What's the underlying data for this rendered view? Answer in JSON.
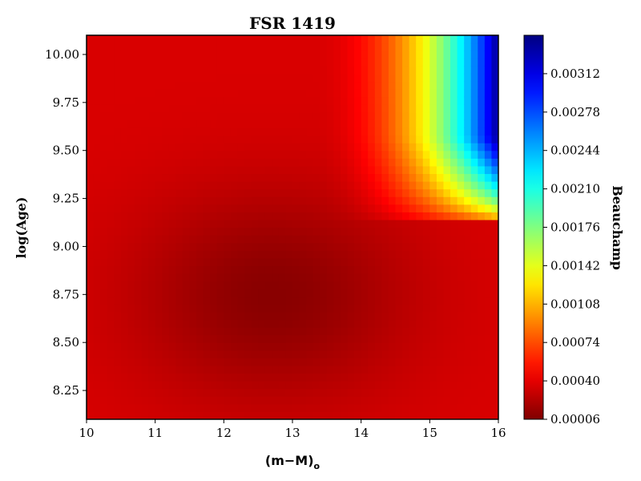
{
  "chart_data": {
    "type": "heatmap",
    "title": "FSR 1419",
    "xlabel": "(m−M)",
    "xlabel_subscript": "o",
    "ylabel": "log(Age)",
    "colorbar_label": "Beauchamp",
    "colormap": "jet_reversed",
    "xlim": [
      10,
      16
    ],
    "ylim": [
      8.1,
      10.1
    ],
    "clim": [
      6e-05,
      0.00346
    ],
    "xticks": [
      10,
      11,
      12,
      13,
      14,
      15,
      16
    ],
    "xtick_labels": [
      "10",
      "11",
      "12",
      "13",
      "14",
      "15",
      "16"
    ],
    "yticks": [
      8.25,
      8.5,
      8.75,
      9.0,
      9.25,
      9.5,
      9.75,
      10.0
    ],
    "ytick_labels": [
      "8.25",
      "8.50",
      "8.75",
      "9.00",
      "9.25",
      "9.50",
      "9.75",
      "10.00"
    ],
    "cticks": [
      6e-05,
      0.0004,
      0.00074,
      0.00108,
      0.00142,
      0.00176,
      0.0021,
      0.00244,
      0.00278,
      0.00312
    ],
    "ctick_labels": [
      "0.00006",
      "0.00040",
      "0.00074",
      "0.00108",
      "0.00142",
      "0.00176",
      "0.00210",
      "0.00244",
      "0.00278",
      "0.00312"
    ],
    "features": {
      "valley_center": [
        12.7,
        8.75
      ],
      "valley_value": 0.0001,
      "peak_location": [
        16,
        10.1
      ],
      "peak_value": 0.0034,
      "transition_log_age": 9.12
    }
  }
}
